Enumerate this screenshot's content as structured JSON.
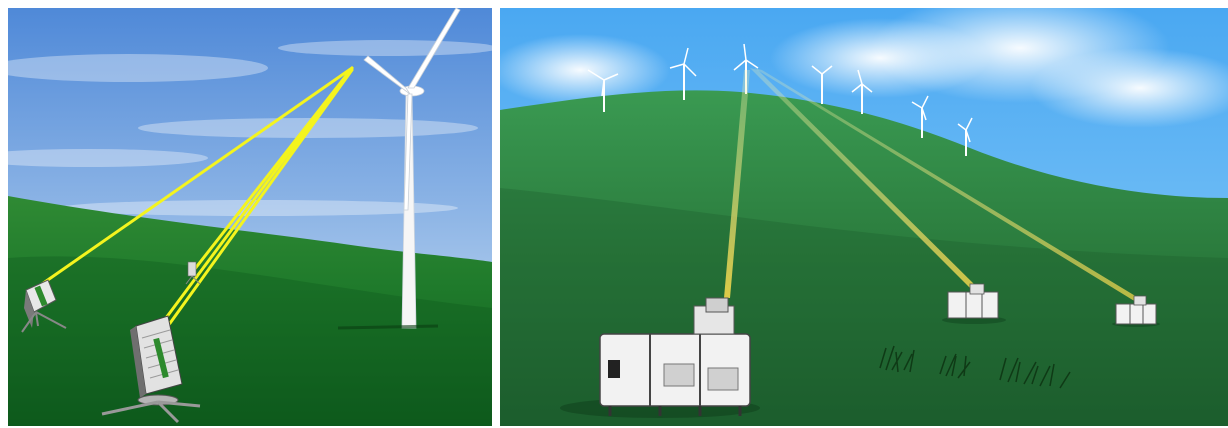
{
  "scene": {
    "panels": [
      {
        "id": "left",
        "subject": "wind-turbine-with-three-tripod-lidar-units",
        "colors": {
          "sky_top": "#4f89d8",
          "sky_bottom": "#cfe0f3",
          "grass_light": "#2f8a34",
          "grass_dark": "#0d5a1c",
          "beam": "#f4f41e",
          "tower": "#ffffff"
        },
        "lidar_units": 3
      },
      {
        "id": "right",
        "subject": "hillside-wind-farm-with-three-box-lidar-units",
        "colors": {
          "sky_top": "#4aa8f2",
          "sky_bottom": "#8ccdf7",
          "grass_light": "#3a9a52",
          "grass_dark": "#1d5f2e",
          "beam": "#f1d64a",
          "unit_body": "#f2f2f2"
        },
        "turbines": 7,
        "lidar_units": 3
      }
    ]
  }
}
